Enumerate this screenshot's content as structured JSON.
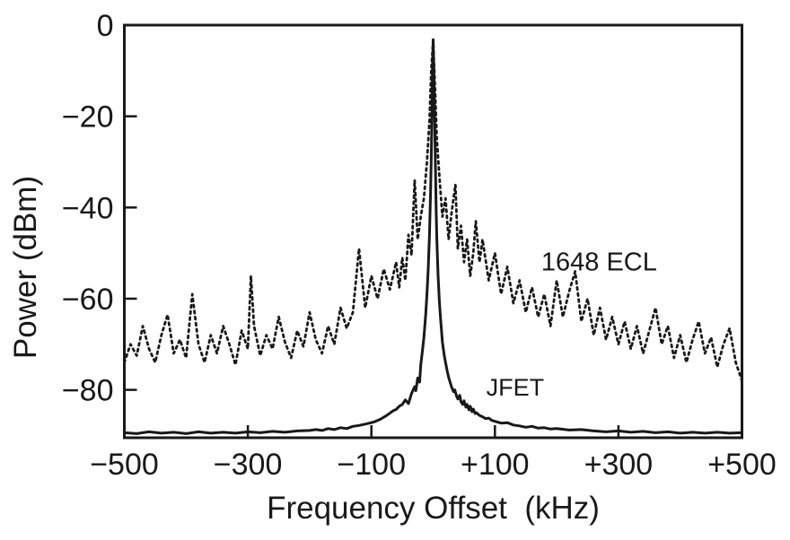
{
  "figure": {
    "background": "#ffffff",
    "ink": "#191919"
  },
  "chart_data": {
    "type": "line",
    "title": "",
    "xlabel": "Frequency Offset  (kHz)",
    "ylabel": "Power (dBm)",
    "xlim": [
      -500,
      500
    ],
    "ylim": [
      -90.5,
      0
    ],
    "grid": false,
    "legend_position": "inline-annotations",
    "x_ticks": [
      {
        "value": -500,
        "label": "−500"
      },
      {
        "value": -300,
        "label": "−300"
      },
      {
        "value": -100,
        "label": "−100"
      },
      {
        "value": 100,
        "label": "+100"
      },
      {
        "value": 300,
        "label": "+300"
      },
      {
        "value": 500,
        "label": "+500"
      }
    ],
    "y_ticks": [
      {
        "value": 0,
        "label": "0"
      },
      {
        "value": -20,
        "label": "−20"
      },
      {
        "value": -40,
        "label": "−40"
      },
      {
        "value": -60,
        "label": "−60"
      },
      {
        "value": -80,
        "label": "−80"
      }
    ],
    "series": [
      {
        "name": "1648 ECL",
        "line_style": "dotted",
        "color": "#191919",
        "x": [
          -500,
          -490,
          -480,
          -470,
          -460,
          -450,
          -440,
          -430,
          -420,
          -410,
          -400,
          -390,
          -380,
          -370,
          -360,
          -350,
          -340,
          -330,
          -320,
          -310,
          -300,
          -295,
          -290,
          -280,
          -270,
          -260,
          -250,
          -240,
          -230,
          -220,
          -210,
          -200,
          -190,
          -180,
          -170,
          -160,
          -150,
          -140,
          -130,
          -120,
          -110,
          -100,
          -90,
          -80,
          -70,
          -60,
          -55,
          -50,
          -45,
          -40,
          -35,
          -30,
          -25,
          -20,
          -15,
          -10,
          -6,
          -3,
          0,
          3,
          6,
          10,
          15,
          20,
          25,
          30,
          36,
          40,
          45,
          50,
          55,
          60,
          65,
          69,
          75,
          80,
          90,
          100,
          110,
          120,
          130,
          140,
          150,
          160,
          170,
          180,
          190,
          200,
          210,
          220,
          230,
          240,
          250,
          260,
          270,
          280,
          290,
          300,
          310,
          320,
          330,
          340,
          350,
          360,
          370,
          380,
          390,
          400,
          410,
          420,
          430,
          440,
          450,
          460,
          470,
          480,
          490,
          500
        ],
        "y": [
          -74,
          -70,
          -72.5,
          -66,
          -71,
          -74,
          -68,
          -63.5,
          -72,
          -69,
          -73,
          -59,
          -70,
          -74,
          -68,
          -72,
          -66,
          -70,
          -74.5,
          -67,
          -71,
          -55,
          -66,
          -72.5,
          -68,
          -71,
          -64,
          -69.5,
          -73,
          -67,
          -70.5,
          -63,
          -69,
          -72,
          -66,
          -70,
          -62,
          -66.5,
          -63,
          -49,
          -62,
          -55,
          -60,
          -53.5,
          -58,
          -52,
          -57.5,
          -51,
          -56,
          -46,
          -50.5,
          -34,
          -47,
          -42,
          -38,
          -30,
          -21,
          -10,
          -3.5,
          -14,
          -25,
          -33,
          -42,
          -38,
          -47,
          -41,
          -35,
          -49,
          -44,
          -52,
          -47,
          -55,
          -50,
          -43,
          -52,
          -47,
          -56,
          -50,
          -59,
          -53,
          -61,
          -56,
          -63,
          -57.5,
          -64,
          -59,
          -66,
          -56,
          -64,
          -58.5,
          -54,
          -65,
          -60,
          -68,
          -62,
          -69,
          -64,
          -70,
          -65,
          -71,
          -66,
          -72,
          -67,
          -62,
          -70,
          -66,
          -73,
          -68,
          -74,
          -69,
          -65,
          -72,
          -68.5,
          -75,
          -70,
          -66.5,
          -74,
          -78
        ]
      },
      {
        "name": "JFET",
        "line_style": "solid",
        "color": "#191919",
        "x": [
          -500,
          -480,
          -460,
          -440,
          -420,
          -400,
          -380,
          -360,
          -340,
          -320,
          -300,
          -280,
          -260,
          -240,
          -220,
          -200,
          -190,
          -180,
          -170,
          -160,
          -150,
          -140,
          -130,
          -120,
          -110,
          -100,
          -95,
          -90,
          -85,
          -80,
          -75,
          -70,
          -65,
          -60,
          -55,
          -50,
          -45,
          -40,
          -35,
          -30,
          -28,
          -25,
          -22,
          -20,
          -17,
          -15,
          -12,
          -10,
          -8,
          -6,
          -4,
          -3,
          -2,
          -1,
          0,
          1,
          2,
          3,
          4,
          5,
          6,
          8,
          10,
          12,
          15,
          18,
          20,
          23,
          25,
          28,
          30,
          33,
          35,
          38,
          40,
          43,
          45,
          48,
          50,
          53,
          55,
          58,
          60,
          63,
          65,
          68,
          70,
          75,
          80,
          85,
          90,
          95,
          100,
          110,
          120,
          130,
          140,
          150,
          160,
          170,
          180,
          190,
          200,
          220,
          240,
          260,
          280,
          300,
          320,
          340,
          360,
          380,
          400,
          420,
          440,
          460,
          480,
          500
        ],
        "y": [
          -89.4,
          -89.6,
          -89.2,
          -89.5,
          -89.3,
          -89.6,
          -89.2,
          -89.5,
          -89.3,
          -89.5,
          -89.2,
          -89.4,
          -89.1,
          -89.3,
          -89.0,
          -88.9,
          -88.7,
          -88.9,
          -88.5,
          -88.7,
          -88.3,
          -88.5,
          -88.0,
          -87.8,
          -87.5,
          -87.2,
          -87.0,
          -86.7,
          -86.4,
          -86.0,
          -85.6,
          -85.1,
          -84.6,
          -84.3,
          -83.6,
          -83.2,
          -82.2,
          -83.0,
          -80.8,
          -79.3,
          -80.2,
          -77.4,
          -78.3,
          -74.5,
          -71.0,
          -68.5,
          -63.5,
          -59.0,
          -53.5,
          -46.0,
          -36.0,
          -29.0,
          -20.0,
          -10.0,
          -3.2,
          -9.0,
          -17.0,
          -26.0,
          -34.0,
          -41.0,
          -47.0,
          -55.0,
          -60.5,
          -64.5,
          -69.5,
          -72.5,
          -74.0,
          -76.0,
          -77.2,
          -78.6,
          -79.4,
          -80.4,
          -80.0,
          -81.4,
          -82.0,
          -81.2,
          -82.6,
          -83.2,
          -82.4,
          -83.8,
          -83.2,
          -84.4,
          -83.6,
          -84.8,
          -84.2,
          -85.2,
          -85.0,
          -85.6,
          -85.9,
          -86.3,
          -86.2,
          -86.7,
          -86.9,
          -87.3,
          -87.2,
          -87.7,
          -87.9,
          -88.2,
          -88.0,
          -88.4,
          -88.3,
          -88.6,
          -88.5,
          -88.8,
          -88.7,
          -89.0,
          -89.2,
          -89.0,
          -89.3,
          -89.1,
          -89.4,
          -89.2,
          -89.5,
          -89.3,
          -89.5,
          -89.3,
          -89.5,
          -89.4
        ]
      }
    ],
    "annotations": [
      {
        "text": "1648 ECL",
        "x": 175,
        "y": -53.8,
        "font_size": 29
      },
      {
        "text": "JFET",
        "x": 86,
        "y": -81.3,
        "font_size": 27
      }
    ]
  }
}
